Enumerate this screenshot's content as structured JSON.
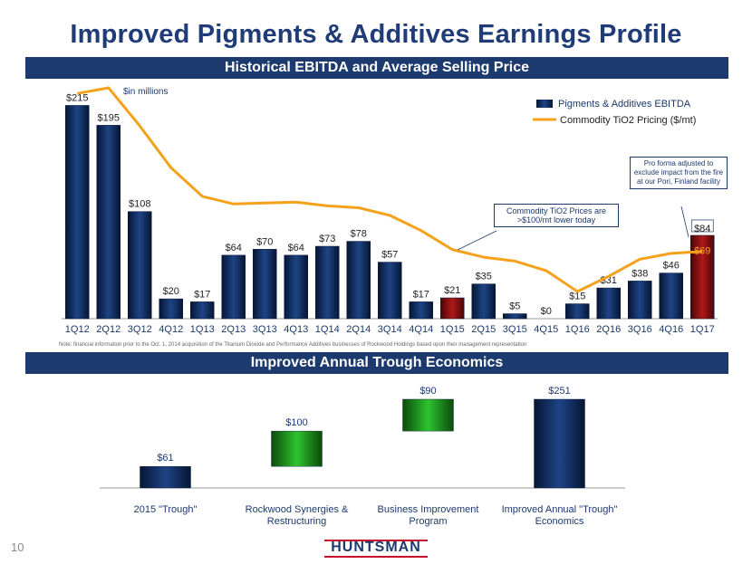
{
  "title": "Improved Pigments & Additives Earnings Profile",
  "section1": {
    "title": "Historical EBITDA and Average Selling Price"
  },
  "section2": {
    "title": "Improved Annual Trough Economics"
  },
  "units_label": "$in millions",
  "note": "Note: financial information prior to the Oct. 1, 2014 acquisition of the Titanium Dioxide and Performance Additives businesses of Rockwood Holdings based upon their management representation",
  "callouts": {
    "tio2": "Commodity TiO2 Prices are >$100/mt lower today",
    "proforma": "Pro forma adjusted to exclude impact from the fire at our Pori, Finland facility"
  },
  "page_number": "10",
  "logo_text": "HUNTSMAN",
  "colors": {
    "navy": "#1c3a6e",
    "bar": "#0d2450",
    "red": "#8b0d0d",
    "orange": "#f5a11c",
    "green": "#1aa41a"
  },
  "chart_data": [
    {
      "type": "bar",
      "categories": [
        "1Q12",
        "2Q12",
        "3Q12",
        "4Q12",
        "1Q13",
        "2Q13",
        "3Q13",
        "4Q13",
        "1Q14",
        "2Q14",
        "3Q14",
        "4Q14",
        "1Q15",
        "2Q15",
        "3Q15",
        "4Q15",
        "1Q16",
        "2Q16",
        "3Q16",
        "4Q16",
        "1Q17"
      ],
      "series": [
        {
          "name": "Pigments & Additives EBITDA",
          "values": [
            215,
            195,
            108,
            20,
            17,
            64,
            70,
            64,
            73,
            78,
            57,
            17,
            21,
            35,
            5,
            0,
            15,
            31,
            38,
            46,
            84
          ],
          "labels": [
            "$215",
            "$195",
            "$108",
            "$20",
            "$17",
            "$64",
            "$70",
            "$64",
            "$73",
            "$78",
            "$57",
            "$17",
            "$21",
            "$35",
            "$5",
            "$0",
            "$15",
            "$31",
            "$38",
            "$46",
            "$84"
          ],
          "highlight_red": [
            "1Q15",
            "1Q17"
          ]
        },
        {
          "name": "Commodity TiO2 Pricing ($/mt)",
          "type": "line",
          "values": [
            97,
            100,
            80,
            58,
            43,
            39,
            39.5,
            40,
            38,
            37,
            33,
            25,
            15,
            11,
            9,
            4,
            -7,
            1,
            10,
            13,
            14
          ]
        }
      ],
      "extra_labels": [
        {
          "category": "1Q17",
          "text": "$69",
          "value": 69
        }
      ],
      "ylim": [
        0,
        230
      ],
      "legend": "top-right"
    },
    {
      "type": "bar",
      "subtype": "waterfall",
      "categories": [
        "2015 \"Trough\"",
        "Rockwood Synergies & Restructuring",
        "Business Improvement Program",
        "Improved Annual \"Trough\" Economics"
      ],
      "values": [
        61,
        100,
        90,
        251
      ],
      "labels": [
        "$61",
        "$100",
        "$90",
        "$251"
      ],
      "kinds": [
        "total",
        "delta",
        "delta",
        "total"
      ],
      "ylim": [
        0,
        260
      ]
    }
  ]
}
